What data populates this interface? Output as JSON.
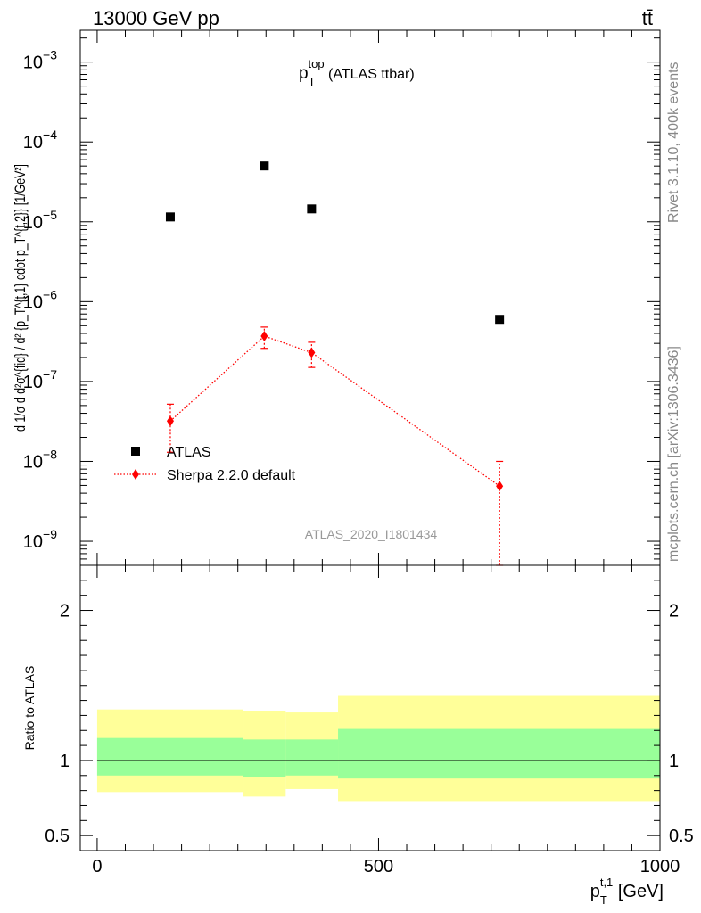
{
  "header": {
    "left": "13000 GeV pp",
    "right": "tt̄"
  },
  "side_labels": {
    "rivet": "Rivet 3.1.10,  400k events",
    "mcplots": "mcplots.cern.ch [arXiv:1306.3436]"
  },
  "watermark": "ATLAS_2020_I1801434",
  "colors": {
    "mc": "#ff0000",
    "data": "#000000",
    "band_inner": "#99ff99",
    "band_outer": "#ffff99"
  },
  "chart_data": [
    {
      "type": "scatter",
      "title": {
        "base": "p",
        "sup": "top",
        "sub": "T",
        "suffix": " (ATLAS ttbar)"
      },
      "ylabel": "d 1/σ d d²σ^{fid} / d² {p_T^{t,1} cdot p_T^{t,2}} [1/GeV²]",
      "yscale": "log",
      "xlim": [
        -30,
        1000
      ],
      "ylim": [
        5e-10,
        0.0025
      ],
      "y_ticks": [
        {
          "v": 1e-09,
          "label": "10",
          "exp": "−9"
        },
        {
          "v": 1e-08,
          "label": "10",
          "exp": "−8"
        },
        {
          "v": 1e-07,
          "label": "10",
          "exp": "−7"
        },
        {
          "v": 1e-06,
          "label": "10",
          "exp": "−6"
        },
        {
          "v": 1e-05,
          "label": "10",
          "exp": "−5"
        },
        {
          "v": 0.0001,
          "label": "10",
          "exp": "−4"
        },
        {
          "v": 0.001,
          "label": "10",
          "exp": "−3"
        }
      ],
      "legend_position": "lower-left",
      "series": [
        {
          "name": "ATLAS",
          "marker": "square",
          "points": [
            {
              "x": 130,
              "y": 1.15e-05
            },
            {
              "x": 297,
              "y": 5e-05
            },
            {
              "x": 381,
              "y": 1.45e-05
            },
            {
              "x": 715,
              "y": 6e-07
            }
          ]
        },
        {
          "name": "Sherpa 2.2.0 default",
          "marker": "diamond",
          "line": "dotted",
          "points": [
            {
              "x": 130,
              "y": 3.2e-08,
              "ylo": 1.3e-08,
              "yhi": 5.2e-08
            },
            {
              "x": 297,
              "y": 3.7e-07,
              "ylo": 2.6e-07,
              "yhi": 4.8e-07
            },
            {
              "x": 381,
              "y": 2.3e-07,
              "ylo": 1.5e-07,
              "yhi": 3.1e-07
            },
            {
              "x": 715,
              "y": 4.9e-09,
              "ylo": 5e-10,
              "yhi": 1e-08
            }
          ]
        }
      ]
    },
    {
      "type": "area",
      "ylabel": "Ratio to ATLAS",
      "xlabel": {
        "base": "p",
        "sup": "t,1",
        "sub": "T",
        "suffix": " [GeV]"
      },
      "xlim": [
        -30,
        1000
      ],
      "ylim": [
        0.4,
        2.3
      ],
      "x_ticks": [
        0,
        500,
        1000
      ],
      "y_ticks": [
        {
          "v": 0.5,
          "label": "0.5"
        },
        {
          "v": 1,
          "label": "1"
        },
        {
          "v": 2,
          "label": "2"
        }
      ],
      "reference": 1,
      "bands": [
        {
          "x0": 0,
          "x1": 260,
          "inner": [
            0.9,
            1.15
          ],
          "outer": [
            0.79,
            1.34
          ]
        },
        {
          "x0": 260,
          "x1": 335,
          "inner": [
            0.89,
            1.14
          ],
          "outer": [
            0.76,
            1.33
          ]
        },
        {
          "x0": 335,
          "x1": 428,
          "inner": [
            0.9,
            1.14
          ],
          "outer": [
            0.81,
            1.32
          ]
        },
        {
          "x0": 428,
          "x1": 1000,
          "inner": [
            0.88,
            1.21
          ],
          "outer": [
            0.73,
            1.43
          ]
        }
      ]
    }
  ]
}
